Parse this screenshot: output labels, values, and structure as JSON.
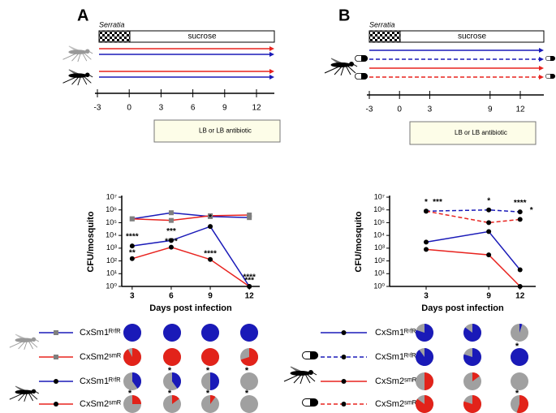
{
  "panel_labels": [
    "A",
    "B"
  ],
  "timelines": [
    {
      "label": "Serratia",
      "bar": "sucrose",
      "ticks": [
        -3,
        0,
        3,
        6,
        9,
        12
      ],
      "plate": "LB or LB antibiotic",
      "arrows": [
        {
          "color": "#e8231f",
          "dash": false
        },
        {
          "color": "#1a1ab8",
          "dash": false
        },
        {
          "color": "#e8231f",
          "dash": false
        },
        {
          "color": "#1a1ab8",
          "dash": false
        }
      ]
    },
    {
      "label": "Serratia",
      "bar": "sucrose",
      "ticks": [
        -3,
        0,
        3,
        9,
        12
      ],
      "plate": "LB or LB antibiotic",
      "arrows": [
        {
          "color": "#1a1ab8",
          "dash": false
        },
        {
          "color": "#1a1ab8",
          "dash": true
        },
        {
          "color": "#e8231f",
          "dash": false
        },
        {
          "color": "#e8231f",
          "dash": true
        }
      ]
    }
  ],
  "chart_data": [
    {
      "type": "line",
      "xlabel": "Days post infection",
      "ylabel": "CFU/mosquito",
      "log": true,
      "x": [
        3,
        6,
        9,
        12
      ],
      "xlim": [
        2.2,
        12.8
      ],
      "xticks": [
        3,
        6,
        9,
        12
      ],
      "ylim": [
        1,
        10000000
      ],
      "yticks": [
        {
          "value": 1,
          "label": "10⁰"
        },
        {
          "value": 10,
          "label": "10¹"
        },
        {
          "value": 100,
          "label": "10²"
        },
        {
          "value": 1000,
          "label": "10³"
        },
        {
          "value": 10000,
          "label": "10⁴"
        },
        {
          "value": 100000,
          "label": "10⁵"
        },
        {
          "value": 1000000,
          "label": "10⁶"
        },
        {
          "value": 10000000,
          "label": "10⁷"
        }
      ],
      "series": [
        {
          "name": "CxSm1ᴿⁱᶠᴿ",
          "color": "#1a1ab8",
          "marker": "square",
          "marker_color": "#7f7f7f",
          "dash": false,
          "values": [
            200000,
            600000,
            300000,
            250000
          ],
          "annotations": [
            null,
            null,
            null,
            null
          ]
        },
        {
          "name": "CxSm2ˢᵐᴿ",
          "color": "#e8231f",
          "marker": "square",
          "marker_color": "#7f7f7f",
          "dash": false,
          "values": [
            200000,
            150000,
            350000,
            400000
          ],
          "annotations": [
            null,
            null,
            null,
            null
          ]
        },
        {
          "name": "CxSm1ᴿⁱᶠᴿ",
          "color": "#1a1ab8",
          "marker": "circle",
          "marker_color": "#000000",
          "dash": false,
          "values": [
            1500,
            4000,
            50000,
            1
          ],
          "annotations": [
            "****",
            "***",
            "*",
            "****"
          ]
        },
        {
          "name": "CxSm2ˢᵐᴿ",
          "color": "#e8231f",
          "marker": "circle",
          "marker_color": "#000000",
          "dash": false,
          "values": [
            150,
            1200,
            130,
            1
          ],
          "annotations": [
            "**",
            "****",
            "****",
            "***"
          ]
        }
      ]
    },
    {
      "type": "line",
      "xlabel": "Days post infection",
      "ylabel": "CFU/mosquito",
      "log": true,
      "x": [
        3,
        9,
        12
      ],
      "xlim": [
        -0.5,
        13.5
      ],
      "xticks": [
        3,
        9,
        12
      ],
      "ylim": [
        1,
        10000000
      ],
      "yticks": [
        {
          "value": 1,
          "label": "10⁰"
        },
        {
          "value": 10,
          "label": "10¹"
        },
        {
          "value": 100,
          "label": "10²"
        },
        {
          "value": 1000,
          "label": "10³"
        },
        {
          "value": 10000,
          "label": "10⁴"
        },
        {
          "value": 100000,
          "label": "10⁵"
        },
        {
          "value": 1000000,
          "label": "10⁶"
        },
        {
          "value": 10000000,
          "label": "10⁷"
        }
      ],
      "series": [
        {
          "name": "CxSm1ᴿⁱᶠᴿ",
          "color": "#1a1ab8",
          "marker": "circle",
          "marker_color": "#000000",
          "dash": false,
          "values": [
            3000,
            20000,
            20
          ],
          "annotations": [
            null,
            null,
            null
          ]
        },
        {
          "name": "CxSm1ᴿⁱᶠᴿ",
          "color": "#1a1ab8",
          "marker": "circle",
          "marker_color": "#000000",
          "dash": true,
          "values": [
            800000,
            1000000,
            700000
          ],
          "annotations": [
            "*",
            "*",
            "****"
          ]
        },
        {
          "name": "CxSm2ˢᵐᴿ",
          "color": "#e8231f",
          "marker": "circle",
          "marker_color": "#000000",
          "dash": false,
          "values": [
            800,
            300,
            1
          ],
          "annotations": [
            null,
            null,
            null
          ]
        },
        {
          "name": "CxSm2ˢᵐᴿ",
          "color": "#e8231f",
          "marker": "circle",
          "marker_color": "#000000",
          "dash": true,
          "values": [
            800000,
            100000,
            180000
          ],
          "annotations": [
            "***",
            null,
            "*"
          ]
        }
      ]
    }
  ],
  "pie_grids": [
    {
      "rows": [
        {
          "color": "#1a1ab8",
          "values": [
            100,
            100,
            100,
            100
          ],
          "stars": [
            null,
            null,
            null,
            null
          ]
        },
        {
          "color": "#e2231a",
          "values": [
            92,
            100,
            100,
            70
          ],
          "stars": [
            null,
            null,
            null,
            null
          ]
        },
        {
          "color": "#1a1ab8",
          "values": [
            40,
            40,
            50,
            0
          ],
          "stars": [
            null,
            "*",
            "*",
            "*"
          ]
        },
        {
          "color": "#e2231a",
          "values": [
            25,
            15,
            10,
            0
          ],
          "stars": [
            "*",
            "*",
            "*",
            "*"
          ]
        }
      ]
    },
    {
      "rows": [
        {
          "color": "#1a1ab8",
          "values": [
            80,
            85,
            5
          ],
          "stars": [
            null,
            null,
            null
          ]
        },
        {
          "color": "#1a1ab8",
          "values": [
            90,
            80,
            100
          ],
          "stars": [
            null,
            null,
            "*"
          ]
        },
        {
          "color": "#e2231a",
          "values": [
            50,
            15,
            0
          ],
          "stars": [
            null,
            null,
            null
          ]
        },
        {
          "color": "#e2231a",
          "values": [
            85,
            80,
            55
          ],
          "stars": [
            null,
            null,
            "*"
          ]
        }
      ]
    }
  ]
}
